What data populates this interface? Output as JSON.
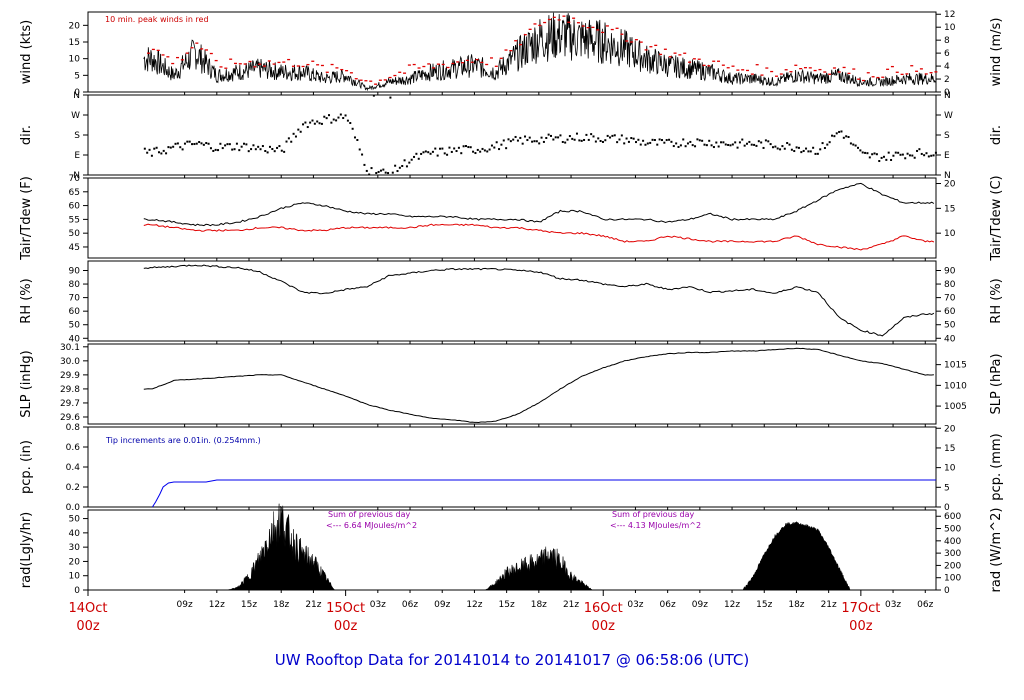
{
  "footer": {
    "title": "UW Rooftop Data for 20141014  to  20141017 @ 06:58:06  (UTC)"
  },
  "notes": {
    "wind": "10 min. peak winds in red",
    "pcp": "Tip increments are 0.01in. (0.254mm.)",
    "rad_sum1_title": "Sum of previous day",
    "rad_sum1_value": "<--- 6.64 MJoules/m^2",
    "rad_sum2_title": "Sum of previous day",
    "rad_sum2_value": "<--- 4.13 MJoules/m^2"
  },
  "x_axis": {
    "hour_labels": [
      "09z",
      "12z",
      "15z",
      "18z",
      "21z",
      "03z",
      "06z",
      "09z",
      "12z",
      "15z",
      "18z",
      "21z",
      "03z",
      "06z",
      "09z",
      "12z",
      "15z",
      "18z",
      "21z",
      "03z",
      "06z"
    ],
    "hour_values": [
      9,
      12,
      15,
      18,
      21,
      27,
      30,
      33,
      36,
      39,
      42,
      45,
      51,
      54,
      57,
      60,
      63,
      66,
      69,
      75,
      78
    ],
    "date_labels": [
      {
        "line1": "14Oct",
        "line2": "00z",
        "hour": 0
      },
      {
        "line1": "15Oct",
        "line2": "00z",
        "hour": 24
      },
      {
        "line1": "16Oct",
        "line2": "00z",
        "hour": 48
      },
      {
        "line1": "17Oct",
        "line2": "00z",
        "hour": 72
      }
    ],
    "xlim": [
      0,
      79
    ]
  },
  "panels": [
    {
      "id": "wind",
      "ylabel_left": "wind (kts)",
      "ylabel_right": "wind (m/s)",
      "left_ticks": [
        "0",
        "5",
        "10",
        "15",
        "20"
      ],
      "left_values": [
        0,
        5,
        10,
        15,
        20
      ],
      "ylim": [
        0,
        24
      ],
      "right_ticks": [
        "0",
        "2",
        "4",
        "6",
        "8",
        "10",
        "12"
      ],
      "right_values": [
        0,
        2,
        4,
        6,
        8,
        10,
        12
      ],
      "right_factor": 0.5144
    },
    {
      "id": "dir",
      "ylabel_left": "dir.",
      "ylabel_right": "dir.",
      "left_ticks": [
        "N",
        "E",
        "S",
        "W",
        "N"
      ],
      "left_values": [
        0,
        90,
        180,
        270,
        360
      ],
      "ylim": [
        0,
        360
      ],
      "right_ticks": [
        "N",
        "E",
        "S",
        "W",
        "N"
      ],
      "right_values": [
        0,
        90,
        180,
        270,
        360
      ]
    },
    {
      "id": "temp",
      "ylabel_left": "Tair/Tdew (F)",
      "ylabel_right": "Tair/Tdew (C)",
      "left_ticks": [
        "45",
        "50",
        "55",
        "60",
        "65",
        "70"
      ],
      "left_values": [
        45,
        50,
        55,
        60,
        65,
        70
      ],
      "ylim": [
        41,
        70
      ],
      "right_ticks": [
        "10",
        "15",
        "20"
      ],
      "right_values": [
        10,
        15,
        20
      ]
    },
    {
      "id": "rh",
      "ylabel_left": "RH (%)",
      "ylabel_right": "RH (%)",
      "left_ticks": [
        "40",
        "50",
        "60",
        "70",
        "80",
        "90"
      ],
      "left_values": [
        40,
        50,
        60,
        70,
        80,
        90
      ],
      "ylim": [
        38,
        97
      ],
      "right_ticks": [
        "40",
        "50",
        "60",
        "70",
        "80",
        "90"
      ],
      "right_values": [
        40,
        50,
        60,
        70,
        80,
        90
      ]
    },
    {
      "id": "slp",
      "ylabel_left": "SLP (inHg)",
      "ylabel_right": "SLP (hPa)",
      "left_ticks": [
        "29.6",
        "29.7",
        "29.8",
        "29.9",
        "30.0",
        "30.1"
      ],
      "left_values": [
        29.6,
        29.7,
        29.8,
        29.9,
        30.0,
        30.1
      ],
      "ylim": [
        29.55,
        30.12
      ],
      "right_ticks": [
        "1005",
        "1010",
        "1015"
      ],
      "right_values": [
        1005,
        1010,
        1015
      ]
    },
    {
      "id": "pcp",
      "ylabel_left": "pcp. (in)",
      "ylabel_right": "pcp. (mm)",
      "left_ticks": [
        "0.0",
        "0.2",
        "0.4",
        "0.6",
        "0.8"
      ],
      "left_values": [
        0,
        0.2,
        0.4,
        0.6,
        0.8
      ],
      "ylim": [
        0,
        0.8
      ],
      "right_ticks": [
        "0",
        "5",
        "10",
        "15",
        "20"
      ],
      "right_values": [
        0,
        5,
        10,
        15,
        20
      ]
    },
    {
      "id": "rad",
      "ylabel_left": "rad(Lgly/hr)",
      "ylabel_right": "rad (W/m^2)",
      "left_ticks": [
        "0",
        "10",
        "20",
        "30",
        "40",
        "50"
      ],
      "left_values": [
        0,
        10,
        20,
        30,
        40,
        50
      ],
      "ylim": [
        0,
        56
      ],
      "right_ticks": [
        "0",
        "100",
        "200",
        "300",
        "400",
        "500",
        "600"
      ],
      "right_values": [
        0,
        100,
        200,
        300,
        400,
        500,
        600
      ]
    }
  ],
  "chart_data": {
    "type": "line",
    "title": "UW Rooftop Data for 20141014  to  20141017 @ 06:58:06  (UTC)",
    "x_units": "hours since 20141014 00z",
    "series": [
      {
        "name": "wind",
        "x": [
          6,
          8,
          10,
          12,
          14,
          16,
          18,
          20,
          22,
          24,
          26,
          28,
          30,
          32,
          34,
          36,
          38,
          40,
          42,
          44,
          46,
          48,
          50,
          52,
          54,
          56,
          58,
          60,
          62,
          64,
          66,
          68,
          70,
          72,
          74,
          76,
          78
        ],
        "values": [
          10,
          5,
          12,
          5,
          6,
          7,
          6,
          6,
          4,
          5,
          1,
          3,
          4,
          6,
          7,
          8,
          6,
          11,
          16,
          17,
          16,
          15,
          13,
          10,
          8,
          7,
          6,
          4,
          4,
          3,
          5,
          4,
          5,
          3,
          3,
          4,
          4
        ]
      },
      {
        "name": "10 min. peak winds",
        "x": [
          6,
          8,
          10,
          12,
          14,
          16,
          18,
          20,
          22,
          24,
          26,
          28,
          30,
          32,
          34,
          36,
          38,
          40,
          42,
          44,
          46,
          48,
          50,
          52,
          54,
          56,
          58,
          60,
          62,
          64,
          66,
          68,
          70,
          72,
          74,
          76,
          78
        ],
        "values": [
          13,
          9,
          15,
          8,
          9,
          9,
          9,
          9,
          7,
          7,
          3,
          5,
          7,
          8,
          9,
          10,
          9,
          15,
          21,
          23,
          21,
          19,
          17,
          14,
          12,
          10,
          9,
          7,
          7,
          6,
          8,
          7,
          7,
          5,
          6,
          7,
          6
        ]
      },
      {
        "name": "dir",
        "x": [
          6,
          8,
          10,
          12,
          14,
          16,
          18,
          20,
          22,
          24,
          26,
          28,
          30,
          32,
          34,
          36,
          38,
          40,
          42,
          44,
          46,
          48,
          50,
          52,
          54,
          56,
          58,
          60,
          62,
          64,
          66,
          68,
          70,
          72,
          74,
          76,
          78
        ],
        "values": [
          100,
          125,
          140,
          125,
          130,
          120,
          110,
          230,
          250,
          265,
          20,
          5,
          70,
          100,
          110,
          115,
          130,
          155,
          160,
          165,
          170,
          165,
          160,
          145,
          140,
          150,
          145,
          140,
          140,
          135,
          125,
          110,
          200,
          90,
          80,
          95,
          100
        ]
      },
      {
        "name": "Tair",
        "x": [
          6,
          8,
          10,
          12,
          14,
          16,
          18,
          20,
          22,
          24,
          26,
          28,
          30,
          32,
          34,
          36,
          38,
          40,
          42,
          44,
          46,
          48,
          50,
          52,
          54,
          56,
          58,
          60,
          62,
          64,
          66,
          68,
          70,
          72,
          74,
          76,
          78
        ],
        "values": [
          55,
          54,
          53,
          53,
          54,
          56,
          59,
          61,
          60,
          58,
          57,
          57,
          56,
          56,
          56,
          55,
          55,
          55,
          54,
          58,
          58,
          55,
          55,
          55,
          54,
          55,
          57,
          55,
          55,
          55,
          58,
          62,
          66,
          68,
          64,
          61,
          61
        ]
      },
      {
        "name": "Tdew",
        "x": [
          6,
          8,
          10,
          12,
          14,
          16,
          18,
          20,
          22,
          24,
          26,
          28,
          30,
          32,
          34,
          36,
          38,
          40,
          42,
          44,
          46,
          48,
          50,
          52,
          54,
          56,
          58,
          60,
          62,
          64,
          66,
          68,
          70,
          72,
          74,
          76,
          78
        ],
        "values": [
          53,
          52,
          51,
          51,
          51,
          52,
          52,
          51,
          51,
          52,
          52,
          52,
          52,
          53,
          53,
          53,
          52,
          52,
          51,
          50,
          50,
          49,
          47,
          47,
          49,
          48,
          47,
          47,
          47,
          47,
          49,
          46,
          45,
          44,
          46,
          49,
          47
        ]
      },
      {
        "name": "RH",
        "x": [
          6,
          8,
          10,
          12,
          14,
          16,
          18,
          20,
          22,
          24,
          26,
          28,
          30,
          32,
          34,
          36,
          38,
          40,
          42,
          44,
          46,
          48,
          50,
          52,
          54,
          56,
          58,
          60,
          62,
          64,
          66,
          68,
          70,
          72,
          74,
          76,
          78
        ],
        "values": [
          92,
          93,
          94,
          93,
          92,
          89,
          82,
          74,
          73,
          76,
          78,
          86,
          88,
          90,
          91,
          91,
          91,
          90,
          89,
          84,
          83,
          80,
          78,
          80,
          76,
          78,
          74,
          75,
          76,
          73,
          78,
          74,
          55,
          46,
          42,
          55,
          58
        ]
      },
      {
        "name": "SLP",
        "x": [
          6,
          8,
          10,
          12,
          14,
          16,
          18,
          20,
          22,
          24,
          26,
          28,
          30,
          32,
          34,
          36,
          38,
          40,
          42,
          44,
          46,
          48,
          50,
          52,
          54,
          56,
          58,
          60,
          62,
          64,
          66,
          68,
          70,
          72,
          74,
          76,
          78
        ],
        "values": [
          29.8,
          29.86,
          29.87,
          29.88,
          29.89,
          29.9,
          29.9,
          29.85,
          29.8,
          29.75,
          29.69,
          29.65,
          29.62,
          29.59,
          29.58,
          29.56,
          29.57,
          29.62,
          29.7,
          29.8,
          29.89,
          29.95,
          30.0,
          30.03,
          30.05,
          30.06,
          30.06,
          30.07,
          30.07,
          30.08,
          30.09,
          30.08,
          30.04,
          30.0,
          29.98,
          29.94,
          29.9
        ]
      },
      {
        "name": "pcp",
        "x": [
          6,
          6.3,
          6.7,
          7,
          7.5,
          8,
          11,
          12,
          79
        ],
        "values": [
          0,
          0.05,
          0.13,
          0.2,
          0.24,
          0.25,
          0.25,
          0.27,
          0.27
        ]
      },
      {
        "name": "rad",
        "x": [
          13,
          14,
          15,
          16,
          17,
          18,
          19,
          20,
          21,
          22,
          23,
          37,
          38,
          39,
          40,
          41,
          42,
          43,
          44,
          45,
          46,
          47,
          61,
          62,
          63,
          64,
          65,
          66,
          67,
          68,
          69,
          70,
          71
        ],
        "values": [
          0,
          2,
          10,
          22,
          40,
          50,
          35,
          25,
          20,
          10,
          0,
          0,
          5,
          12,
          15,
          18,
          20,
          25,
          20,
          10,
          5,
          0,
          0,
          10,
          25,
          38,
          46,
          47,
          45,
          42,
          30,
          15,
          0
        ]
      }
    ],
    "xlim": [
      0,
      79
    ],
    "grid": false
  }
}
